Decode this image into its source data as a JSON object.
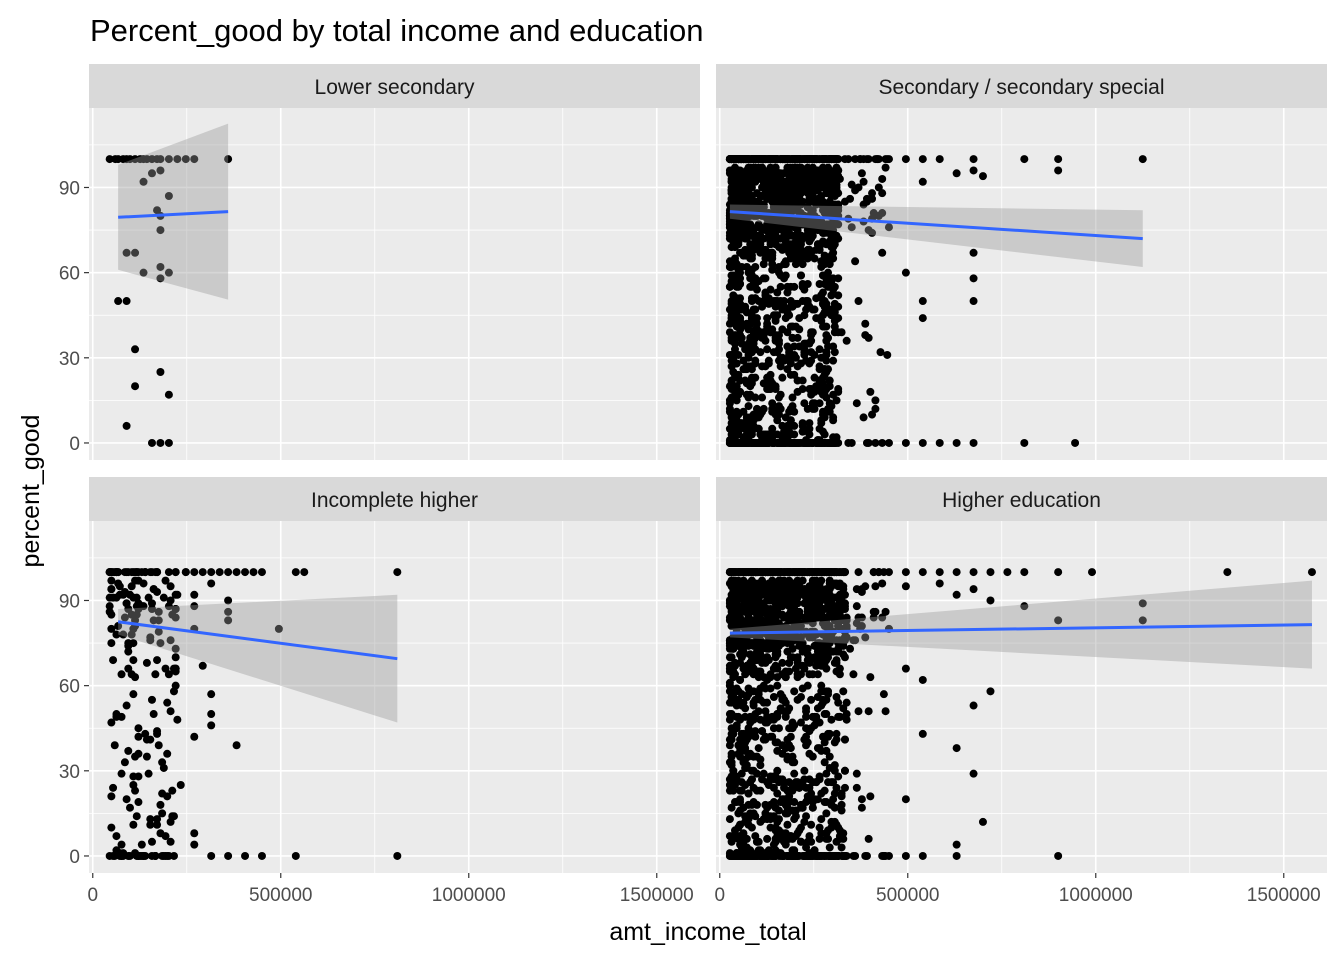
{
  "chart_data": {
    "type": "scatter",
    "title": "Percent_good by total income and education",
    "xlabel": "amt_income_total",
    "ylabel": "percent_good",
    "xlim": [
      -10000,
      1615000
    ],
    "ylim": [
      -6,
      118
    ],
    "x_ticks": [
      0,
      500000,
      1000000,
      1500000
    ],
    "x_tick_labels": [
      "0",
      "500000",
      "1000000",
      "1500000"
    ],
    "y_ticks": [
      0,
      30,
      60,
      90
    ],
    "y_tick_labels": [
      "0",
      "30",
      "60",
      "90"
    ],
    "grid": true,
    "smooth": "lm",
    "colors": {
      "point": "#000000",
      "line": "#3366FF",
      "band": "#999999",
      "panel": "#EBEBEB",
      "strip": "#D9D9D9",
      "grid": "#FFFFFF"
    },
    "panels": [
      {
        "label": "Lower secondary",
        "fit": {
          "x": [
            67500,
            360000
          ],
          "y": [
            79.5,
            81.5
          ],
          "lower": [
            61,
            50.5
          ],
          "upper": [
            98,
            112.5
          ]
        },
        "points": [
          [
            45000,
            100
          ],
          [
            60000,
            100
          ],
          [
            67500,
            100
          ],
          [
            81000,
            100
          ],
          [
            90000,
            100
          ],
          [
            99000,
            100
          ],
          [
            112500,
            100
          ],
          [
            126000,
            100
          ],
          [
            135000,
            100
          ],
          [
            144000,
            100
          ],
          [
            157500,
            100
          ],
          [
            171000,
            100
          ],
          [
            180000,
            100
          ],
          [
            202500,
            100
          ],
          [
            225000,
            100
          ],
          [
            247500,
            100
          ],
          [
            270000,
            100
          ],
          [
            360000,
            100
          ],
          [
            157500,
            95
          ],
          [
            180000,
            96
          ],
          [
            135000,
            92
          ],
          [
            202500,
            87
          ],
          [
            180000,
            80
          ],
          [
            171000,
            82
          ],
          [
            180000,
            75
          ],
          [
            90000,
            67
          ],
          [
            112500,
            67
          ],
          [
            180000,
            62
          ],
          [
            135000,
            60
          ],
          [
            202500,
            60
          ],
          [
            180000,
            58
          ],
          [
            67500,
            50
          ],
          [
            90000,
            50
          ],
          [
            112500,
            33
          ],
          [
            180000,
            25
          ],
          [
            112500,
            20
          ],
          [
            202500,
            17
          ],
          [
            90000,
            6
          ],
          [
            157500,
            0
          ],
          [
            180000,
            0
          ],
          [
            202500,
            0
          ]
        ]
      },
      {
        "label": "Secondary / secondary special",
        "fit": {
          "x": [
            27000,
            1125000
          ],
          "y": [
            81.5,
            72
          ],
          "lower": [
            79,
            62
          ],
          "upper": [
            84,
            82
          ]
        },
        "cluster": {
          "xmin": 27000,
          "xmax": 450000,
          "dense_max": 315000,
          "count": 2000
        },
        "points": [
          [
            450000,
            100
          ],
          [
            495000,
            100
          ],
          [
            540000,
            100
          ],
          [
            585000,
            100
          ],
          [
            675000,
            100
          ],
          [
            810000,
            100
          ],
          [
            900000,
            100
          ],
          [
            1125000,
            100
          ],
          [
            675000,
            96
          ],
          [
            900000,
            96
          ],
          [
            540000,
            92
          ],
          [
            630000,
            95
          ],
          [
            700000,
            94
          ],
          [
            405000,
            88
          ],
          [
            450000,
            76
          ],
          [
            495000,
            60
          ],
          [
            675000,
            67
          ],
          [
            675000,
            58
          ],
          [
            540000,
            50
          ],
          [
            675000,
            50
          ],
          [
            540000,
            44
          ],
          [
            585000,
            0
          ],
          [
            630000,
            0
          ],
          [
            675000,
            0
          ],
          [
            810000,
            0
          ],
          [
            945000,
            0
          ],
          [
            495000,
            0
          ],
          [
            540000,
            0
          ],
          [
            450000,
            0
          ]
        ]
      },
      {
        "label": "Incomplete higher",
        "fit": {
          "x": [
            67500,
            810000
          ],
          "y": [
            82.5,
            69.5
          ],
          "lower": [
            78,
            47
          ],
          "upper": [
            87,
            92
          ]
        },
        "cluster": {
          "xmin": 45000,
          "xmax": 270000,
          "dense_max": 225000,
          "count": 220
        },
        "points": [
          [
            270000,
            100
          ],
          [
            292500,
            100
          ],
          [
            315000,
            100
          ],
          [
            337500,
            100
          ],
          [
            360000,
            100
          ],
          [
            382500,
            100
          ],
          [
            405000,
            100
          ],
          [
            427500,
            100
          ],
          [
            450000,
            100
          ],
          [
            540000,
            100
          ],
          [
            562500,
            100
          ],
          [
            810000,
            100
          ],
          [
            315000,
            96
          ],
          [
            270000,
            92
          ],
          [
            360000,
            90
          ],
          [
            360000,
            86
          ],
          [
            360000,
            83
          ],
          [
            495000,
            80
          ],
          [
            292500,
            67
          ],
          [
            315000,
            57
          ],
          [
            315000,
            50
          ],
          [
            270000,
            42
          ],
          [
            315000,
            46
          ],
          [
            382500,
            39
          ],
          [
            270000,
            4
          ],
          [
            270000,
            8
          ],
          [
            315000,
            0
          ],
          [
            360000,
            0
          ],
          [
            405000,
            0
          ],
          [
            450000,
            0
          ],
          [
            540000,
            0
          ],
          [
            810000,
            0
          ]
        ]
      },
      {
        "label": "Higher education",
        "fit": {
          "x": [
            27000,
            1575000
          ],
          "y": [
            78.5,
            81.5
          ],
          "lower": [
            77,
            66
          ],
          "upper": [
            80,
            97
          ]
        },
        "cluster": {
          "xmin": 27000,
          "xmax": 450000,
          "dense_max": 337500,
          "count": 1800
        },
        "points": [
          [
            450000,
            100
          ],
          [
            495000,
            100
          ],
          [
            540000,
            100
          ],
          [
            585000,
            100
          ],
          [
            630000,
            100
          ],
          [
            675000,
            100
          ],
          [
            720000,
            100
          ],
          [
            765000,
            100
          ],
          [
            810000,
            100
          ],
          [
            900000,
            100
          ],
          [
            990000,
            100
          ],
          [
            1350000,
            100
          ],
          [
            1575000,
            100
          ],
          [
            495000,
            95
          ],
          [
            585000,
            96
          ],
          [
            630000,
            92
          ],
          [
            675000,
            94
          ],
          [
            720000,
            90
          ],
          [
            810000,
            88
          ],
          [
            900000,
            83
          ],
          [
            1125000,
            89
          ],
          [
            1125000,
            83
          ],
          [
            450000,
            80
          ],
          [
            495000,
            66
          ],
          [
            540000,
            62
          ],
          [
            720000,
            58
          ],
          [
            675000,
            53
          ],
          [
            540000,
            43
          ],
          [
            630000,
            38
          ],
          [
            675000,
            29
          ],
          [
            495000,
            20
          ],
          [
            700000,
            12
          ],
          [
            630000,
            4
          ],
          [
            540000,
            0
          ],
          [
            630000,
            0
          ],
          [
            900000,
            0
          ],
          [
            495000,
            0
          ],
          [
            450000,
            0
          ]
        ]
      }
    ]
  }
}
